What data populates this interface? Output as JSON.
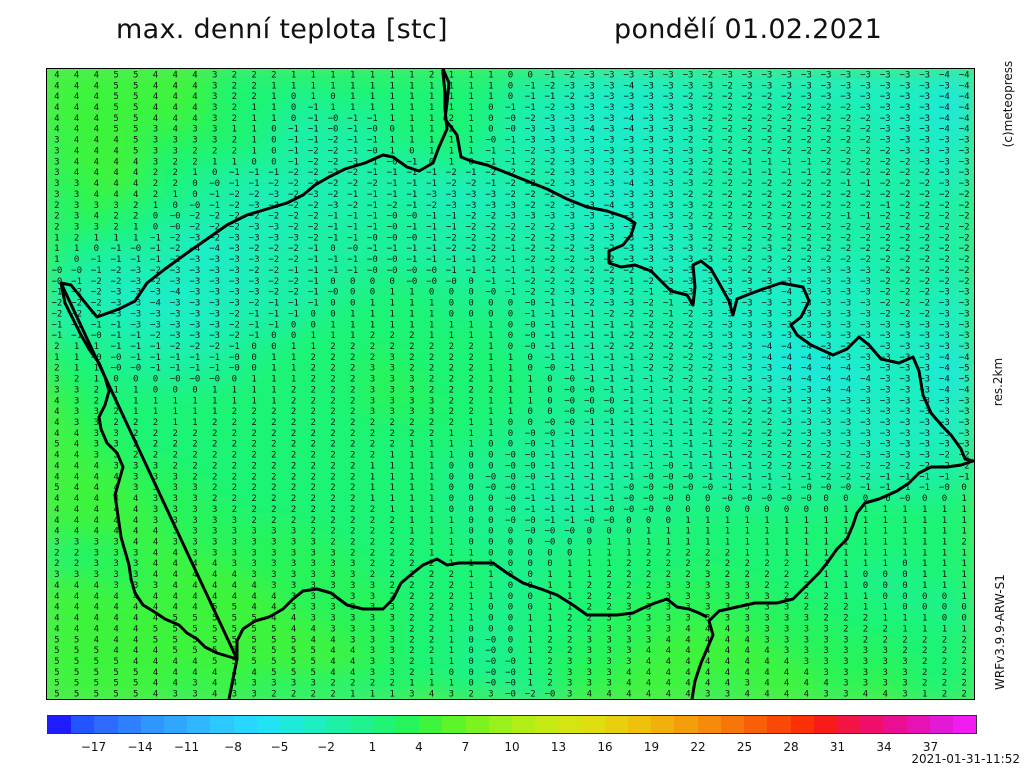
{
  "header": {
    "title_left": "max. denní teplota [stc]",
    "title_right": "pondělí 01.02.2021"
  },
  "side_labels": {
    "copyright": "(c)meteopress",
    "resolution": "res.2km",
    "model": "WRFv3.9.9-ARW-S1"
  },
  "colorbar": {
    "tick_labels": [
      "−17",
      "−14",
      "−11",
      "−8",
      "−5",
      "−2",
      "1",
      "4",
      "7",
      "10",
      "13",
      "16",
      "19",
      "22",
      "25",
      "28",
      "31",
      "34",
      "37"
    ],
    "colors": [
      "#1f1cff",
      "#2255ff",
      "#2d6bff",
      "#2f80ff",
      "#2f95ff",
      "#2fa7ff",
      "#2fb8ff",
      "#2cc8ff",
      "#27d7ff",
      "#22e3f4",
      "#1fe9db",
      "#1feec2",
      "#1ff0a8",
      "#1ff28e",
      "#1ff474",
      "#25f45a",
      "#3ef43c",
      "#5df42a",
      "#7cf31f",
      "#98f11a",
      "#b1ee17",
      "#c5ea14",
      "#d4e512",
      "#e0dd10",
      "#e8d00e",
      "#efc10d",
      "#f2b00c",
      "#f59e0b",
      "#f78a0a",
      "#f87509",
      "#f95f08",
      "#fa4807",
      "#fb3006",
      "#f81b1b",
      "#f31344",
      "#ef0f6a",
      "#ea0f90",
      "#e612b4",
      "#e21ad6",
      "#f01cf0"
    ]
  },
  "timestamp": "2021-01-31-11:52",
  "map": {
    "region": "Czech Republic",
    "field": "daily maximum temperature",
    "value_rows": [
      "4 4 4 5 5 4 4 4 3 2 2 2 1 1 1 1 1 1 1 2 1 1 1 0 0 -1 -2 -3 -3 -3 -3 -3 -3 -2 -3 -3 -3 -3 -3 -3 -3 -3 -3 -3 -3 -4 -4",
      "4 4 4 5 5 4 4 4 3 2 2 1 1 1 1 1 1 1 1 1 1 1 1 0 -1 -2 -3 -3 -3 -4 -3 -3 -3 -3 -2 -3 -3 -3 -3 -3 -3 -3 -3 -3 -3 -3 -4",
      "4 4 4 5 5 4 4 4 3 2 2 1 0 1 0 1 1 1 1 1 1 1 1 0 -1 -1 -2 -3 -3 -3 -3 -3 -2 -2 -2 -2 -2 -2 -3 -3 -3 -3 -3 -3 -3 -4 -4",
      "4 4 4 5 5 4 4 4 3 2 1 1 0 -1 1 1 1 1 1 1 1 1 0 -1 -1 -2 -3 -3 -3 -3 -3 -3 -3 -2 -2 -2 -2 -2 -2 -2 -2 -3 -3 -3 -3 -4 -4",
      "4 4 4 5 5 4 4 4 3 2 1 1 0 -1 -0 -1 -1 1 1 1 2 1 0 -0 -2 -3 -3 -3 -3 -4 -3 -3 -3 -2 -2 -2 -2 -2 -2 -2 -2 -2 -3 -3 -3 -4 -4",
      "4 4 4 5 5 3 4 3 3 1 1 0 -1 -1 -0 -1 -0 0 1 1 2 1 0 -0 -3 -3 -3 -4 -3 -4 -3 -3 -3 -2 -2 -2 -2 -2 -2 -2 -2 -2 -3 -3 -3 -4 -4",
      "3 4 4 4 5 3 3 3 3 2 1 0 -1 -1 -2 -1 -1 1 1 1 1 1 -0 -1 -3 -3 -3 -3 -3 -3 -3 -3 -2 -2 -2 -2 -2 -2 -2 -2 -2 -2 -3 -3 -3 -3 -3",
      "3 4 4 4 5 3 3 2 2 2 1 0 -1 -2 -2 -1 -0 1 0 1 1 1 -1 -1 -2 -3 -3 -3 -3 -3 -3 -3 -3 -3 -2 -2 -2 -2 -2 -2 -2 -2 -2 -3 -3 -3 -3",
      "3 4 4 4 4 3 2 2 1 1 0 0 -1 -2 -2 -3 -1 -0 -1 0 1 0 -1 -1 -2 -2 -3 -3 -3 -3 -3 -3 -3 -2 -2 -1 -1 -1 -1 -2 -2 -2 -2 -2 -3 -3 -3",
      "3 4 4 4 4 2 2 1 0 -1 -1 -1 -2 -2 -2 -2 -1 -1 -1 -1 -2 -1 -2 -2 -2 -2 -3 -3 -3 -3 -3 -3 -2 -2 -2 -1 -1 -1 -1 -2 -2 -2 -2 -2 -2 -3 -3",
      "3 3 4 4 4 2 2 0 -0 -1 -1 -2 -2 -3 -2 -2 -2 -1 -1 -1 -2 -2 -1 -2 -2 -2 -3 -3 -3 -4 -3 -3 -3 -2 -2 -2 -2 -2 -2 -2 -1 -1 -2 -2 -2 -3 -3",
      "3 3 4 4 4 2 1 0 -1 -2 -2 -3 -2 -3 -2 -1 -1 -1 -1 -3 -3 -3 -3 -2 -2 -2 -3 -3 -3 -3 -3 -3 -2 -2 -2 -2 -2 -2 -2 -2 -2 -2 -2 -2 -2 -2 -2",
      "2 3 3 3 2 1 0 -0 -1 -2 -3 -3 -2 -2 -3 -2 -1 -2 -1 -2 -3 -3 -3 -3 -2 -2 -3 -3 -4 -3 -3 -3 -3 -2 -2 -2 -2 -2 -2 -2 -2 -2 -1 -2 -2 -2 -2",
      "2 3 4 2 2 0 -0 -2 -2 -2 -2 -2 -2 -2 -1 -1 -1 -0 -0 -1 -1 -2 -2 -3 -3 -3 -3 -3 -3 -3 -3 -3 -2 -2 -2 -2 -2 -2 -2 -2 -1 -1 -2 -2 -2 -2 -2",
      "2 3 3 2 1 0 -0 -2 -2 -2 -3 -3 -2 -2 -1 -1 -1 -0 -1 -1 -1 -2 -2 -2 -2 -2 -3 -3 -3 -3 -3 -3 -3 -2 -2 -2 -2 -2 -2 -2 -2 -2 -2 -2 -2 -2 -2",
      "1 2 1 1 1 -1 -2 -3 -2 -3 -3 -3 -3 -2 -1 -1 -0 -0 -0 -1 -2 -2 -2 -2 -2 -2 -3 -2 -3 -3 -3 -3 -3 -2 -2 -2 -2 -2 -2 -2 -2 -2 -2 -2 -2 -2 -2",
      "1 1 0 -1 -0 -1 -2 -4 -4 -3 -2 -2 -2 -1 0 -0 -1 -1 -1 -1 -2 -2 -2 -1 -2 -2 -2 -3 -2 -3 -3 -3 -3 -2 -2 -2 -3 -2 -2 -2 -2 -2 -2 -2 -2 -2 -2",
      "1 0 -1 -1 -1 -1 -2 -3 -3 -3 -3 -2 -2 -1 -1 -1 -0 -0 -1 -1 -1 -1 -2 -1 -2 -2 -2 -3 -2 -3 -3 -3 -3 -3 -2 -2 -3 -2 -2 -2 -2 -2 -2 -2 -2 -2 -2",
      "-0 -0 -1 -2 -3 -2 -3 -3 -3 -3 -2 -2 -1 -1 -1 -1 -0 -0 -0 -0 -1 -1 -1 -1 -1 -2 -2 -2 -2 -2 -3 -3 -3 -3 -3 -2 -2 -3 -3 -3 -3 -3 -2 -2 -2 -2 -2",
      "-0 -1 -2 -2 -3 -2 -3 -3 -3 -3 -3 -2 -2 -1 0 0 0 0 -0 -0 -0 0 -1 -1 -2 -2 -2 -2 -2 -1 -2 -3 -3 -3 -3 -3 -3 -3 -3 -3 -3 -3 -2 -2 -2 -2 -2",
      "-1 -2 -2 -3 -3 -3 -4 -3 -3 -3 -3 -2 -2 -1 -0 0 0 1 1 0 0 0 -0 -1 -2 -2 -3 -3 -3 -2 -1 -2 -3 -3 -3 -3 -3 -4 -3 -3 -3 -3 -2 -2 -2 -3 -3",
      "-2 -2 -2 -3 -3 -4 -3 -3 -3 -3 -2 -1 -1 -1 0 0 1 1 1 1 0 0 0 0 -0 -1 -1 -2 -3 -3 -2 -1 -2 -3 -3 -3 -3 -3 -3 -3 -3 -3 -2 -2 -2 -3 -3",
      "-2 -2 -2 -3 -3 -3 -3 -3 -3 -2 -1 -1 -1 0 0 1 1 1 1 1 0 0 0 0 -1 -1 -1 -1 -2 -2 -2 -1 -2 -3 -3 -3 -3 -3 -3 -3 -3 -3 -2 -2 -2 -3 -3",
      "-1 -1 -1 -1 -3 -3 -3 -3 -3 -2 -1 -1 0 0 1 1 1 1 1 1 1 1 1 0 -0 -1 -1 -1 -1 -1 -2 -2 -2 -2 -3 -3 -3 -3 -3 -3 -3 -3 -3 -3 -3 -3 -3",
      "-1 -1 -0 -1 -1 -2 -3 -3 -3 -2 -1 0 0 1 1 1 2 2 2 1 1 1 1 0 -0 -1 -1 -1 -1 -2 -2 -2 -2 -3 -3 -3 -3 -3 -3 -3 -3 -3 -3 -3 -3 -3 -3",
      "2 1 1 -1 -1 -1 -2 -2 -2 -1 0 0 1 1 2 2 2 2 2 2 2 2 1 0 -0 -1 -1 -1 -2 -2 -2 -2 -2 -3 -3 -3 -4 -4 -4 -3 -3 -3 -3 -3 -3 -3 -3",
      "1 1 -0 -0 -1 -1 -1 -1 -1 -0 0 1 1 2 2 2 2 3 2 2 2 2 1 1 0 -1 -1 -1 -1 -1 -2 -2 -2 -2 -3 -3 -4 -4 -4 -4 -3 -3 -3 -3 -3 -4 -4",
      "2 1 1 -0 -0 -1 -1 -1 -1 -0 0 1 1 2 2 2 3 3 2 2 2 2 1 1 0 -0 -1 -1 -1 -1 -2 -2 -2 -2 -3 -3 -3 -4 -4 -4 -4 -3 -3 -3 -3 -4 -5",
      "3 2 1 0 0 0 -0 -0 -0 0 1 1 1 2 2 2 3 3 3 2 2 2 1 1 1 0 -0 -1 -1 -1 -1 -2 -2 -2 -3 -3 -3 -4 -4 -4 -4 -4 -3 -3 -3 -4 -5",
      "3 3 2 1 1 0 0 0 1 1 1 1 2 2 2 2 3 3 3 2 2 2 2 1 1 0 -0 -0 -1 -1 -1 -1 -2 -2 -2 -3 -3 -3 -3 -4 -4 -3 -3 -3 -3 -4 -4",
      "4 3 2 1 1 1 1 1 1 1 1 1 2 2 2 2 3 3 3 3 2 2 1 1 1 0 -0 -0 -0 -1 -1 -1 -1 -2 -2 -2 -3 -3 -3 -3 -3 -3 -3 -3 -3 -3 -3",
      "4 3 3 2 1 1 1 1 1 2 2 2 2 2 2 2 3 3 3 3 2 2 1 1 0 0 -0 -0 -0 -1 -1 -1 -1 -2 -2 -2 -2 -3 -3 -3 -3 -3 -3 -3 -3 -3 -3",
      "4 3 3 2 2 2 1 1 2 2 2 2 2 2 2 2 2 2 2 2 2 1 1 0 0 -0 -0 -1 -1 -1 -1 -1 -1 -2 -2 -2 -2 -3 -3 -3 -3 -3 -3 -3 -3 -3 -3",
      "4 4 3 3 2 2 2 2 2 2 2 2 2 2 2 2 2 2 2 2 1 1 1 0 -0 -0 -1 -1 -1 -1 -1 -1 -1 -1 -2 -2 -2 -2 -3 -3 -3 -3 -3 -3 -3 -3 -3",
      "5 4 3 3 2 2 2 2 2 2 2 2 2 2 2 2 2 2 1 1 1 1 0 0 -0 -1 -1 -1 -1 -1 -1 -1 -1 -1 -2 -2 -2 -2 -2 -3 -3 -3 -3 -3 -3 -3 -3",
      "4 4 3 3 2 2 2 2 2 2 2 2 2 2 2 2 2 1 1 1 1 0 0 -0 -0 -1 -1 -1 -1 -1 -1 -1 -1 -1 -1 -2 -2 -2 -2 -2 -2 -3 -3 -3 -3 -2 -2",
      "4 4 4 3 3 3 2 2 2 2 2 2 2 2 2 2 1 1 1 1 0 0 0 -0 -0 -1 -1 -1 -1 -1 -1 -0 -1 -1 -1 -1 -2 -2 -2 -2 -2 -2 -2 -2 -2 -2 -2",
      "4 4 4 4 3 3 3 2 2 2 2 2 2 2 2 2 1 1 1 1 0 0 -0 -0 -0 -1 -1 -1 -1 -1 -0 -0 -0 -1 -1 -1 -1 -1 -1 -2 -2 -2 -1 -1 -1 -1 -1",
      "5 4 4 4 3 3 3 3 2 2 2 2 2 2 2 2 1 1 1 1 0 0 -0 -0 -1 -1 -1 -1 -1 -0 -0 -0 -0 -0 -1 -1 -1 -1 -0 -0 -0 -1 -1 -1 -1 -0 0",
      "4 4 4 4 4 3 3 3 2 2 2 2 2 2 2 2 1 1 1 1 0 0 0 -0 -1 -1 -1 -1 -1 -0 -0 -0 0 0 -0 -0 -0 -0 -0 0 0 0 -0 -0 0 0 1",
      "4 4 4 4 4 3 3 3 3 2 2 2 2 2 2 2 2 1 1 1 0 0 0 -0 -1 -1 -1 -1 -0 -0 -0 0 0 0 0 0 0 0 0 0 1 1 1 1 1 1 1",
      "4 4 4 4 4 3 3 3 3 3 2 2 2 2 2 2 2 2 1 1 1 0 0 -0 -0 -1 -1 -0 -0 0 0 0 1 1 1 1 1 1 1 1 1 1 1 1 1 1 1",
      "4 4 4 4 4 4 3 3 3 3 3 3 3 2 2 2 2 2 1 1 1 0 0 0 -0 -0 -0 0 0 0 1 1 1 1 1 1 1 1 1 1 1 1 1 1 1 1 1",
      "3 3 3 3 4 4 3 3 3 3 3 3 3 3 2 2 2 2 2 1 1 0 0 0 0 -0 0 0 1 1 1 1 1 1 1 1 1 1 1 1 1 1 1 1 1 1 2",
      "2 2 3 3 3 4 4 3 3 3 3 3 3 3 3 2 2 2 2 1 1 1 0 0 0 0 0 1 1 1 2 2 2 2 2 1 1 1 1 1 1 1 1 1 1 1 1",
      "2 2 3 3 3 4 4 4 4 3 3 3 3 3 3 3 2 2 2 2 1 1 1 0 0 0 1 1 1 2 2 2 2 2 2 2 2 2 1 1 1 1 1 0 1 1 1",
      "3 3 3 3 3 4 4 4 4 4 3 3 3 3 3 3 2 2 2 2 2 1 1 0 0 1 1 1 2 2 2 2 2 3 2 2 2 2 2 1 1 0 0 0 1 1 1",
      "4 4 4 3 3 3 4 4 4 4 4 3 3 3 3 3 3 2 2 2 2 1 1 0 0 1 1 2 2 2 2 3 3 3 3 3 2 2 2 1 1 0 0 0 1 1 1",
      "4 4 4 4 4 4 4 4 4 4 4 4 3 3 3 3 3 2 2 2 2 1 1 0 0 1 1 2 2 2 3 3 3 3 3 3 3 2 2 2 1 1 0 0 0 0 1",
      "4 4 4 4 4 4 4 4 5 5 4 4 3 3 3 3 3 3 2 2 2 1 0 0 0 1 1 2 2 3 3 3 3 3 3 3 3 3 2 2 2 1 1 0 0 0 0",
      "4 4 4 4 4 4 5 5 5 5 5 4 4 3 3 3 3 3 2 2 1 1 0 0 1 1 2 2 3 3 3 3 3 3 3 3 3 3 3 2 2 2 1 1 1 0 0",
      "4 4 4 4 4 5 5 5 5 5 5 5 4 4 3 3 3 3 2 2 1 0 0 0 1 1 2 2 3 3 3 3 4 4 4 3 3 3 3 3 2 2 2 1 1 1 1",
      "5 5 4 4 4 5 5 5 5 5 5 5 5 4 4 3 3 3 2 2 1 0 -0 0 1 2 2 3 3 3 3 4 4 4 4 4 3 3 3 3 3 2 2 2 2 2 2",
      "5 5 5 4 4 4 5 5 5 5 5 5 5 5 4 4 3 3 2 2 1 0 -0 0 1 2 2 3 3 3 4 4 4 4 4 4 4 3 3 3 3 3 3 2 2 2 2",
      "5 5 5 5 4 4 4 4 5 5 5 5 5 5 4 4 3 3 2 1 1 0 -0 -0 1 2 3 3 3 3 4 4 4 4 4 4 4 4 3 3 3 3 3 3 2 2 2",
      "5 5 5 5 5 4 4 4 4 4 4 5 5 5 4 4 3 3 2 1 0 0 -0 -0 1 2 3 3 3 4 4 4 4 4 4 4 4 4 4 3 3 3 3 3 2 2 2",
      "5 5 5 5 5 4 4 3 4 4 3 3 3 3 2 2 2 2 1 1 1 0 -0 -0 1 2 3 3 3 4 4 4 4 4 4 3 4 4 4 4 3 3 3 3 2 2 2",
      "5 5 5 5 5 4 3 3 4 3 3 2 2 2 2 1 1 1 3 4 3 2 3 -0 -2 -0 3 4 4 4 4 4 4 3 3 4 4 4 4 3 3 4 4 3 1 2 2"
    ]
  }
}
